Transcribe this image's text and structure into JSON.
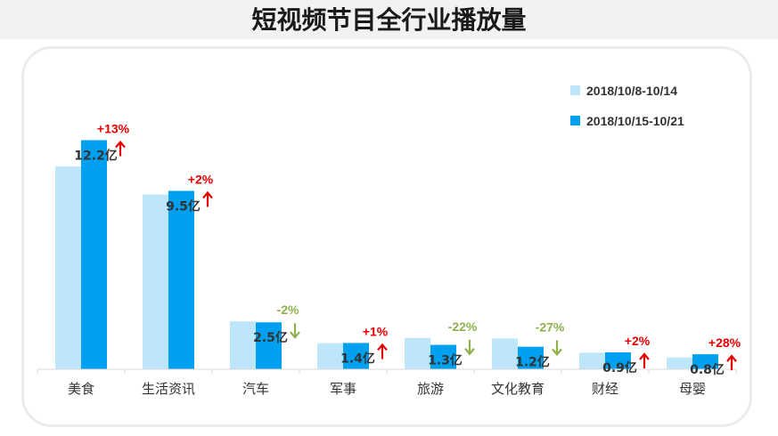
{
  "title": "短视频节目全行业播放量",
  "chart_data": {
    "type": "bar",
    "categories": [
      "美食",
      "生活资讯",
      "汽车",
      "军事",
      "旅游",
      "文化教育",
      "财经",
      "母婴"
    ],
    "series": [
      {
        "name": "2018/10/8-10/14",
        "values": [
          10.8,
          9.3,
          2.55,
          1.39,
          1.67,
          1.64,
          0.88,
          0.63
        ],
        "color": "#bde6fa"
      },
      {
        "name": "2018/10/15-10/21",
        "values": [
          12.2,
          9.5,
          2.5,
          1.4,
          1.3,
          1.2,
          0.9,
          0.8
        ],
        "color": "#00a0f0"
      }
    ],
    "value_labels": [
      "12.2亿",
      "9.5亿",
      "2.5亿",
      "1.4亿",
      "1.3亿",
      "1.2亿",
      "0.9亿",
      "0.8亿"
    ],
    "changes": [
      {
        "text": "+13%",
        "direction": "up"
      },
      {
        "text": "+2%",
        "direction": "up"
      },
      {
        "text": "-2%",
        "direction": "down"
      },
      {
        "text": "+1%",
        "direction": "up"
      },
      {
        "text": "-22%",
        "direction": "down"
      },
      {
        "text": "-27%",
        "direction": "down"
      },
      {
        "text": "+2%",
        "direction": "up"
      },
      {
        "text": "+28%",
        "direction": "up"
      }
    ],
    "change_colors": {
      "up": "#e60000",
      "down": "#8fb14b"
    },
    "ylim": [
      0,
      13.6
    ],
    "grid": false,
    "legend_position": "top-right"
  }
}
